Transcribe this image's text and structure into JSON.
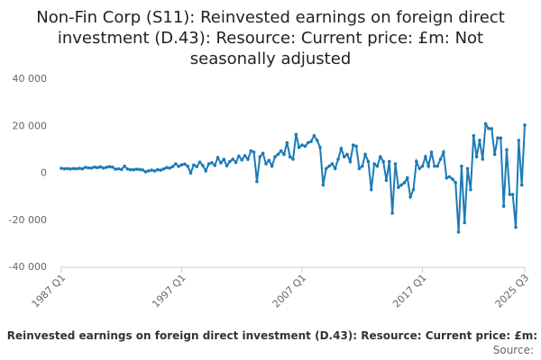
{
  "chart_data": {
    "type": "line",
    "title": "Non-Fin Corp (S11): Reinvested earnings on foreign direct investment (D.43): Resource: Current price: £m: Not seasonally adjusted",
    "source": "Source:",
    "categories": [
      "1987 Q1",
      null,
      null,
      null,
      null,
      null,
      null,
      null,
      null,
      null,
      null,
      null,
      null,
      null,
      null,
      null,
      null,
      null,
      null,
      null,
      null,
      null,
      null,
      null,
      null,
      null,
      null,
      null,
      null,
      null,
      null,
      null,
      null,
      null,
      null,
      null,
      null,
      null,
      null,
      null,
      "1997 Q1",
      null,
      null,
      null,
      null,
      null,
      null,
      null,
      null,
      null,
      null,
      null,
      null,
      null,
      null,
      null,
      null,
      null,
      null,
      null,
      null,
      null,
      null,
      null,
      null,
      null,
      null,
      null,
      null,
      null,
      null,
      null,
      null,
      null,
      null,
      null,
      null,
      null,
      null,
      null,
      "2007 Q1",
      null,
      null,
      null,
      null,
      null,
      null,
      null,
      null,
      null,
      null,
      null,
      null,
      null,
      null,
      null,
      null,
      null,
      null,
      null,
      null,
      null,
      null,
      null,
      null,
      null,
      null,
      null,
      null,
      null,
      null,
      null,
      null,
      null,
      null,
      null,
      null,
      null,
      null,
      null,
      "2017 Q1",
      null,
      null,
      null,
      null,
      null,
      null,
      null,
      null,
      null,
      null,
      null,
      null,
      null,
      null,
      null,
      null,
      null,
      null,
      null,
      null,
      null,
      null,
      null,
      null,
      null,
      null,
      null,
      null,
      null,
      null,
      null,
      null,
      null,
      "2025 Q3"
    ],
    "series": [
      {
        "name": "Reinvested earnings on foreign direct investment (D.43): Resource: Current price: £m:",
        "color": "#1d7ab7",
        "values": [
          2100,
          1900,
          2000,
          1800,
          2000,
          1900,
          2100,
          1900,
          2500,
          2300,
          2200,
          2600,
          2400,
          2700,
          2200,
          2500,
          2800,
          2600,
          1700,
          1900,
          1600,
          3000,
          1800,
          1500,
          1500,
          1700,
          1600,
          1400,
          600,
          1000,
          1300,
          1000,
          1500,
          1300,
          1800,
          2400,
          2200,
          2800,
          4000,
          2900,
          3600,
          3900,
          3000,
          100,
          3500,
          2800,
          4700,
          3300,
          1000,
          4000,
          4500,
          3300,
          6700,
          4400,
          5900,
          3200,
          5000,
          6000,
          4600,
          7300,
          5700,
          7500,
          5900,
          9500,
          9000,
          -3500,
          7000,
          8500,
          4000,
          5500,
          3000,
          7000,
          8000,
          9500,
          8000,
          13000,
          7000,
          6000,
          16500,
          11000,
          12000,
          11500,
          13000,
          13500,
          16000,
          14000,
          11000,
          -5000,
          2000,
          3000,
          4000,
          2000,
          6000,
          10500,
          7000,
          8000,
          5000,
          12000,
          11500,
          2000,
          3000,
          8000,
          5000,
          -7000,
          4000,
          3000,
          7000,
          5000,
          -3000,
          5000,
          -17000,
          4000,
          -6000,
          -5000,
          -4000,
          -2000,
          -10000,
          -7000,
          5000,
          2000,
          3000,
          7000,
          3000,
          9000,
          3000,
          3000,
          6000,
          9000,
          -2000,
          -1500,
          -2500,
          -4000,
          -25000,
          3000,
          -21000,
          2000,
          -7000,
          16000,
          7000,
          14000,
          6000,
          21000,
          19000,
          19000,
          8000,
          15000,
          15000,
          -14000,
          10000,
          -9000,
          -9000,
          -23000,
          14000,
          -5000,
          20500
        ]
      }
    ],
    "ylim": [
      -40000,
      40000
    ],
    "yticks": [
      {
        "value": -40000,
        "label": "-40 000"
      },
      {
        "value": -20000,
        "label": "-20 000"
      },
      0,
      {
        "value": 20000,
        "label": "20 000"
      },
      {
        "value": 40000,
        "label": "40 000"
      }
    ],
    "grid": false
  }
}
